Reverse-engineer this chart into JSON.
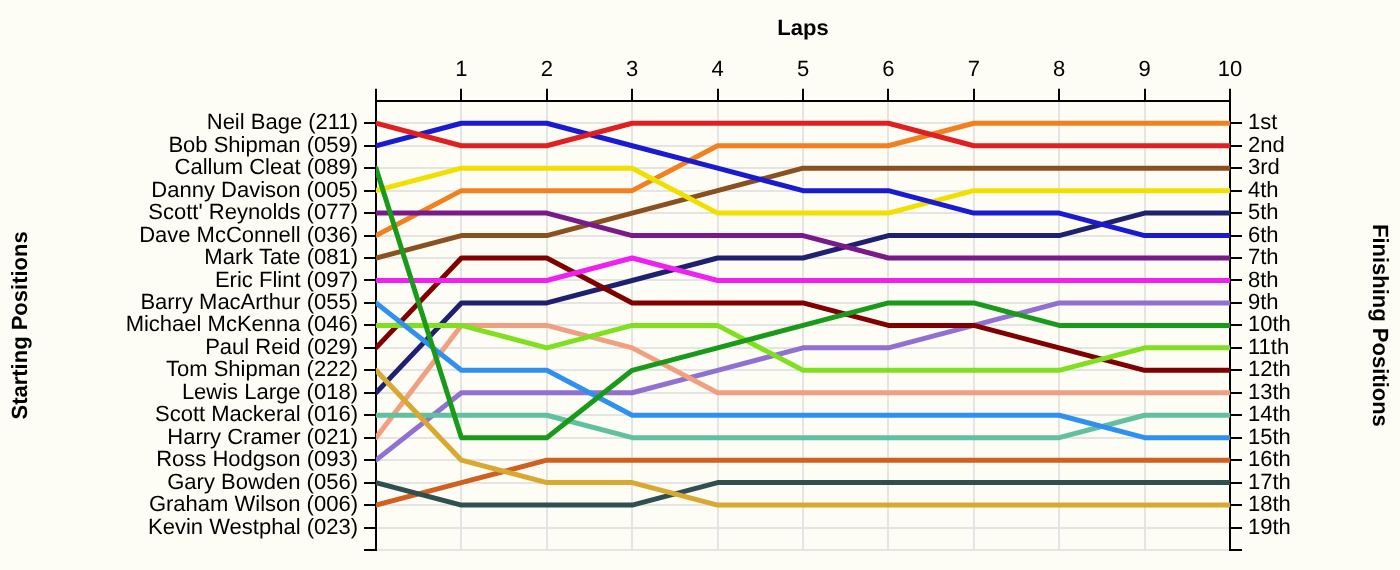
{
  "chart_data": {
    "type": "line",
    "xlabel": "Laps",
    "ylabel": "Finishing Positions",
    "x": [
      0,
      1,
      2,
      3,
      4,
      5,
      6,
      7,
      8,
      9,
      10
    ],
    "xlim": [
      0,
      10
    ],
    "xticks": [
      {
        "value": 0,
        "label": null
      },
      1,
      2,
      3,
      4,
      5,
      6,
      7,
      8,
      9,
      10
    ],
    "ylim": [
      20,
      0
    ],
    "yticks": [
      {
        "value": 1,
        "label": "1st"
      },
      {
        "value": 2,
        "label": "2nd"
      },
      {
        "value": 3,
        "label": "3rd"
      },
      {
        "value": 4,
        "label": "4th"
      },
      {
        "value": 5,
        "label": "5th"
      },
      {
        "value": 6,
        "label": "6th"
      },
      {
        "value": 7,
        "label": "7th"
      },
      {
        "value": 8,
        "label": "8th"
      },
      {
        "value": 9,
        "label": "9th"
      },
      {
        "value": 10,
        "label": "10th"
      },
      {
        "value": 11,
        "label": "11th"
      },
      {
        "value": 12,
        "label": "12th"
      },
      {
        "value": 13,
        "label": "13th"
      },
      {
        "value": 14,
        "label": "14th"
      },
      {
        "value": 15,
        "label": "15th"
      },
      {
        "value": 16,
        "label": "16th"
      },
      {
        "value": 17,
        "label": "17th"
      },
      {
        "value": 18,
        "label": "18th"
      },
      {
        "value": 19,
        "label": "19th"
      },
      {
        "value": 20,
        "label": null
      }
    ],
    "annotations": [
      "Starting Positions",
      "Neil Bage (211)",
      "Bob Shipman (059)",
      "Callum Cleat (089)",
      "Danny Davison (005)",
      "Scott' Reynolds (077)",
      "Dave McConnell (036)",
      "Mark Tate (081)",
      "Eric Flint (097)",
      "Barry MacArthur (055)",
      "Michael McKenna (046)",
      "Paul Reid (029)",
      "Tom Shipman (222)",
      "Lewis Large (018)",
      "Scott Mackeral (016)",
      "Harry Cramer (021)",
      "Ross Hodgson (093)",
      "Gary Bowden (056)",
      "Graham Wilson (006)",
      "Kevin Westphal (023)"
    ],
    "grid": true,
    "marker": "none",
    "line_style": "solid",
    "series": [
      {
        "color": "#e02020",
        "values": [
          1,
          2,
          2,
          1,
          1,
          1,
          1,
          2,
          2,
          2,
          2
        ]
      },
      {
        "color": "#1a1ad0",
        "values": [
          2,
          1,
          1,
          2,
          3,
          4,
          4,
          5,
          5,
          6,
          6
        ]
      },
      {
        "color": "#1a9a1a",
        "values": [
          3,
          15,
          15,
          12,
          11,
          10,
          9,
          9,
          10,
          10,
          10
        ]
      },
      {
        "color": "#f0e000",
        "values": [
          4,
          3,
          3,
          3,
          5,
          5,
          5,
          4,
          4,
          4,
          4
        ]
      },
      {
        "color": "#7a1a8a",
        "values": [
          5,
          5,
          5,
          6,
          6,
          6,
          7,
          7,
          7,
          7,
          7
        ]
      },
      {
        "color": "#f08020",
        "values": [
          6,
          4,
          4,
          4,
          2,
          2,
          2,
          1,
          1,
          1,
          1
        ]
      },
      {
        "color": "#8a5020",
        "values": [
          7,
          6,
          6,
          5,
          4,
          3,
          3,
          3,
          3,
          3,
          3
        ]
      },
      {
        "color": "#f020f0",
        "values": [
          8,
          8,
          8,
          7,
          8,
          8,
          8,
          8,
          8,
          8,
          8
        ]
      },
      {
        "color": "#3090f0",
        "values": [
          9,
          12,
          12,
          14,
          14,
          14,
          14,
          14,
          14,
          15,
          15
        ]
      },
      {
        "color": "#80e020",
        "values": [
          10,
          10,
          11,
          10,
          10,
          12,
          12,
          12,
          12,
          11,
          11
        ]
      },
      {
        "color": "#800000",
        "values": [
          11,
          7,
          7,
          9,
          9,
          9,
          10,
          10,
          11,
          12,
          12
        ]
      },
      {
        "color": "#d8a830",
        "values": [
          12,
          16,
          17,
          17,
          18,
          18,
          18,
          18,
          18,
          18,
          18
        ]
      },
      {
        "color": "#202070",
        "values": [
          13,
          9,
          9,
          8,
          7,
          7,
          6,
          6,
          6,
          5,
          5
        ]
      },
      {
        "color": "#60c0a0",
        "values": [
          14,
          14,
          14,
          15,
          15,
          15,
          15,
          15,
          15,
          14,
          14
        ]
      },
      {
        "color": "#f0a080",
        "values": [
          15,
          10,
          10,
          11,
          13,
          13,
          13,
          13,
          13,
          13,
          13
        ]
      },
      {
        "color": "#9070d0",
        "values": [
          16,
          13,
          13,
          13,
          12,
          11,
          11,
          10,
          9,
          9,
          9
        ]
      },
      {
        "color": "#305050",
        "values": [
          17,
          18,
          18,
          18,
          17,
          17,
          17,
          17,
          17,
          17,
          17
        ]
      },
      {
        "color": "#d06020",
        "values": [
          18,
          17,
          16,
          16,
          16,
          16,
          16,
          16,
          16,
          16,
          16
        ]
      }
    ]
  }
}
